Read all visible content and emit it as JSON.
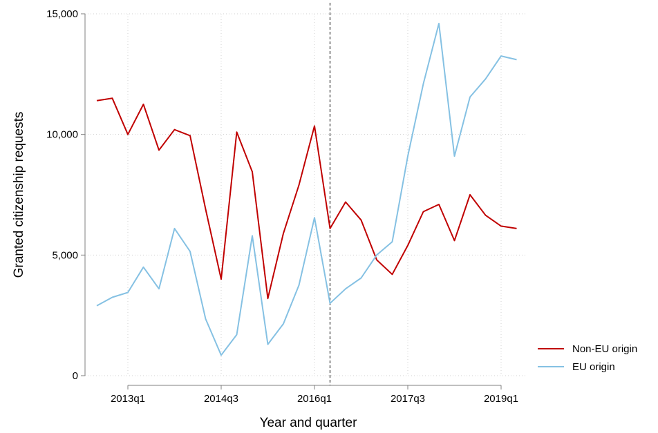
{
  "chart_data": {
    "type": "line",
    "title": "",
    "xlabel": "Year and quarter",
    "ylabel": "Granted citizenship requests",
    "x": [
      "2012q3",
      "2012q4",
      "2013q1",
      "2013q2",
      "2013q3",
      "2013q4",
      "2014q1",
      "2014q2",
      "2014q3",
      "2014q4",
      "2015q1",
      "2015q2",
      "2015q3",
      "2015q4",
      "2016q1",
      "2016q2",
      "2016q3",
      "2016q4",
      "2017q1",
      "2017q2",
      "2017q3",
      "2017q4",
      "2018q1",
      "2018q2",
      "2018q3",
      "2018q4",
      "2019q1",
      "2019q2"
    ],
    "x_ticks": [
      "2013q1",
      "2014q3",
      "2016q1",
      "2017q3",
      "2019q1"
    ],
    "y_ticks": [
      0,
      5000,
      10000,
      15000
    ],
    "y_tick_labels": [
      "0",
      "5,000",
      "10,000",
      "15,000"
    ],
    "ylim": [
      0,
      15000
    ],
    "grid": true,
    "reference_line": {
      "x": "2016q2",
      "style": "dashed"
    },
    "legend": {
      "position": "right"
    },
    "series": [
      {
        "name": "Non-EU origin",
        "color": "#c00000",
        "values": [
          11400,
          11500,
          10000,
          11250,
          9350,
          10200,
          9950,
          6900,
          4000,
          10100,
          8450,
          3200,
          5900,
          7900,
          10350,
          6100,
          7200,
          6450,
          4800,
          4200,
          5400,
          6800,
          7100,
          5600,
          7500,
          6650,
          6200,
          6100
        ]
      },
      {
        "name": "EU origin",
        "color": "#85c1e3",
        "values": [
          2900,
          3250,
          3450,
          4500,
          3600,
          6100,
          5150,
          2350,
          850,
          1700,
          5800,
          1300,
          2150,
          3750,
          6550,
          3000,
          3600,
          4050,
          5000,
          5550,
          9100,
          12100,
          14600,
          9100,
          11550,
          12300,
          13250,
          13100
        ]
      }
    ]
  }
}
